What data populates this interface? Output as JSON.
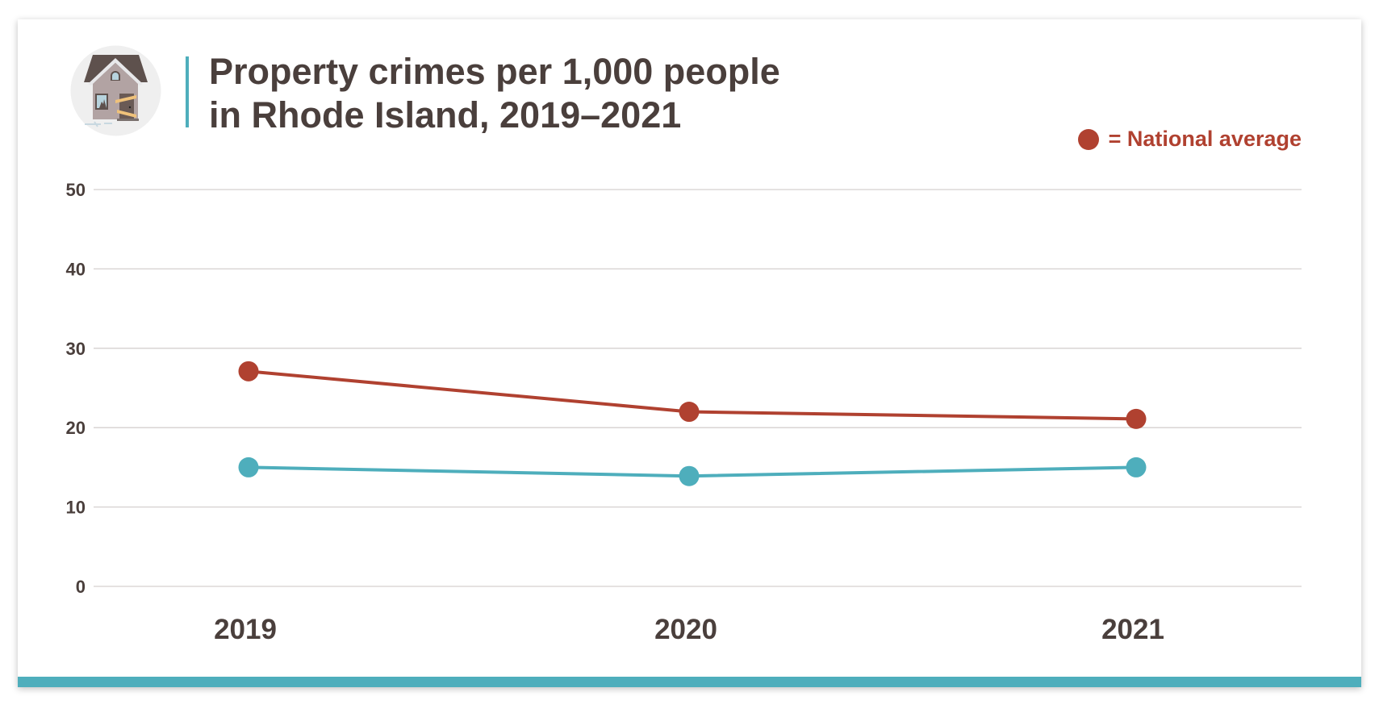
{
  "title_lines": [
    "Property crimes per 1,000 people",
    "in Rhode Island, 2019–2021"
  ],
  "legend": {
    "label": "= National average"
  },
  "colors": {
    "national": "#b04130",
    "state": "#4eaebc",
    "accent": "#4eaebc",
    "text": "#4a3f3c",
    "grid": "#d5d0cf"
  },
  "icon": "damaged-house-icon",
  "chart_data": {
    "type": "line",
    "categories": [
      "2019",
      "2020",
      "2021"
    ],
    "series": [
      {
        "name": "National average",
        "values": [
          27.1,
          22.0,
          21.1
        ],
        "color": "#b04130"
      },
      {
        "values": [
          15.0,
          13.9,
          15.0
        ],
        "color": "#4eaebc"
      }
    ],
    "ylim": [
      0,
      50
    ],
    "yticks": [
      "0",
      "10",
      "20",
      "30",
      "40",
      "50"
    ],
    "grid": true,
    "legend_position": "top-right"
  }
}
